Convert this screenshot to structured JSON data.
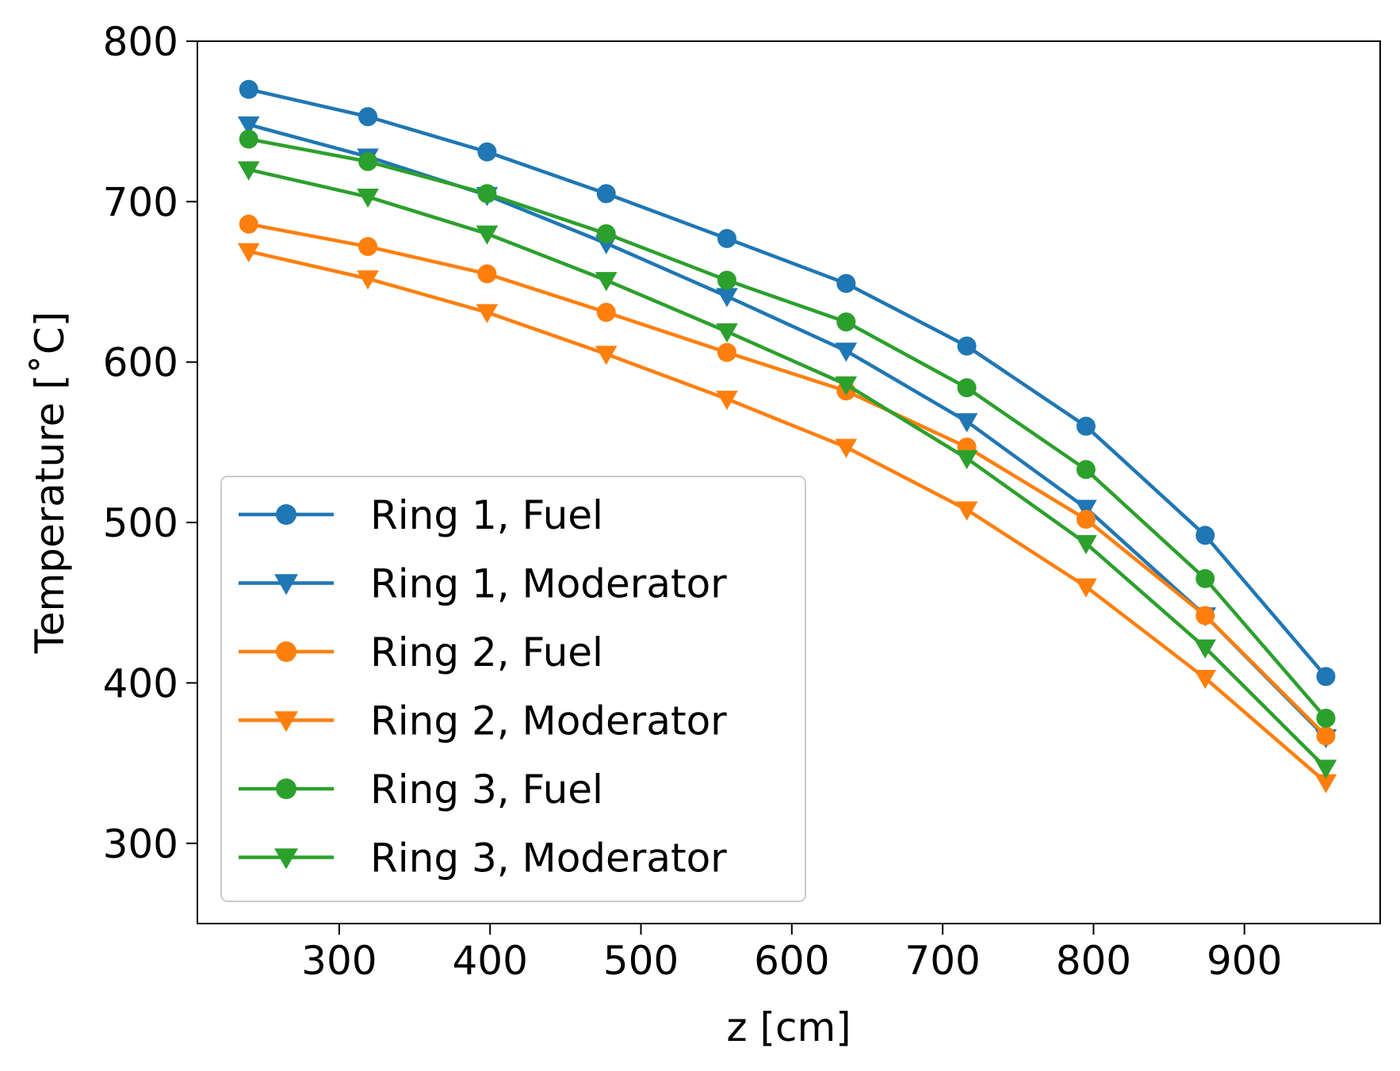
{
  "chart_data": {
    "type": "line",
    "title": "",
    "xlabel": "z [cm]",
    "ylabel": "Temperature [˚C]",
    "xlim": [
      206,
      990
    ],
    "ylim": [
      250,
      800
    ],
    "xticks": [
      300,
      400,
      500,
      600,
      700,
      800,
      900
    ],
    "yticks": [
      300,
      400,
      500,
      600,
      700,
      800
    ],
    "grid": false,
    "legend_position": "lower-left",
    "x": [
      240,
      319,
      398,
      477,
      557,
      636,
      716,
      795,
      874,
      954
    ],
    "series": [
      {
        "name": "Ring 1, Fuel",
        "color": "#1f77b4",
        "marker": "circle",
        "values": [
          770,
          753,
          731,
          705,
          677,
          649,
          610,
          560,
          492,
          404
        ]
      },
      {
        "name": "Ring 1, Moderator",
        "color": "#1f77b4",
        "marker": "triangle-down",
        "values": [
          748,
          728,
          704,
          674,
          641,
          607,
          563,
          509,
          442,
          366
        ]
      },
      {
        "name": "Ring 2, Fuel",
        "color": "#ff7f0e",
        "marker": "circle",
        "values": [
          686,
          672,
          655,
          631,
          606,
          582,
          547,
          502,
          442,
          367
        ]
      },
      {
        "name": "Ring 2, Moderator",
        "color": "#ff7f0e",
        "marker": "triangle-down",
        "values": [
          669,
          652,
          631,
          605,
          577,
          547,
          508,
          460,
          403,
          338
        ]
      },
      {
        "name": "Ring 3, Fuel",
        "color": "#2ca02c",
        "marker": "circle",
        "values": [
          739,
          725,
          705,
          680,
          651,
          625,
          584,
          533,
          465,
          378
        ]
      },
      {
        "name": "Ring 3, Moderator",
        "color": "#2ca02c",
        "marker": "triangle-down",
        "values": [
          720,
          703,
          680,
          651,
          619,
          586,
          540,
          487,
          422,
          347
        ]
      }
    ]
  }
}
